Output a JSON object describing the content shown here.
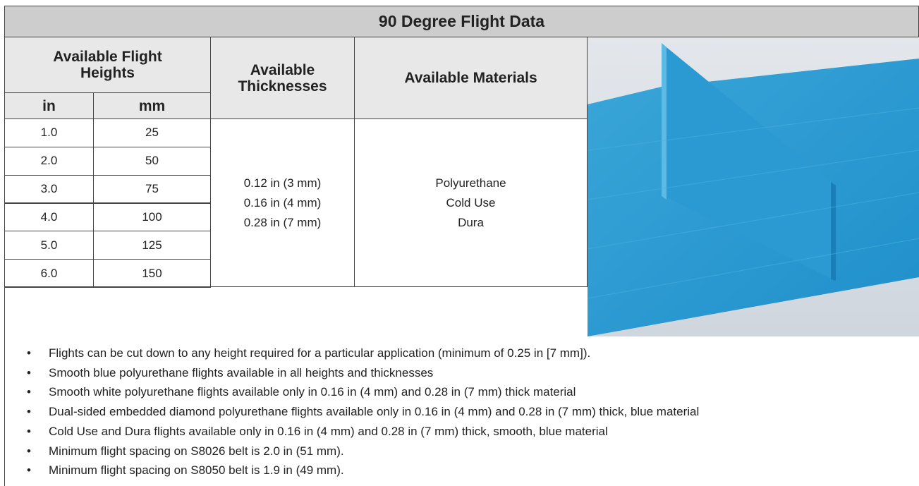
{
  "header": {
    "title": "90 Degree Flight Data"
  },
  "table": {
    "columns": {
      "heights": "Available Flight Heights",
      "in": "in",
      "mm": "mm",
      "thicknesses": "Available Thicknesses",
      "materials": "Available Materials"
    },
    "rows": [
      [
        "1.0",
        "25"
      ],
      [
        "2.0",
        "50"
      ],
      [
        "3.0",
        "75"
      ],
      [
        "4.0",
        "100"
      ],
      [
        "5.0",
        "125"
      ],
      [
        "6.0",
        "150"
      ]
    ],
    "thicknesses": [
      "0.12 in (3 mm)",
      "0.16 in (4 mm)",
      "0.28 in (7 mm)"
    ],
    "materials": [
      "Polyurethane",
      "Cold Use",
      "Dura"
    ]
  },
  "notes": [
    "Flights can be cut down to any height required for a particular application (minimum of 0.25 in [7 mm]).",
    "Smooth blue polyurethane flights available in all heights and thicknesses",
    "Smooth white polyurethane flights available only in 0.16 in (4 mm) and 0.28 in (7 mm) thick material",
    "Dual-sided embedded diamond polyurethane flights available only in 0.16 in (4 mm) and 0.28 in (7 mm) thick, blue material",
    "Cold Use and Dura flights available only in 0.16 in (4 mm) and 0.28 in (7 mm) thick, smooth, blue material",
    "Minimum flight spacing on S8026 belt is 2.0 in (51 mm).",
    "Minimum flight spacing on S8050 belt is 1.9 in (49 mm)."
  ]
}
